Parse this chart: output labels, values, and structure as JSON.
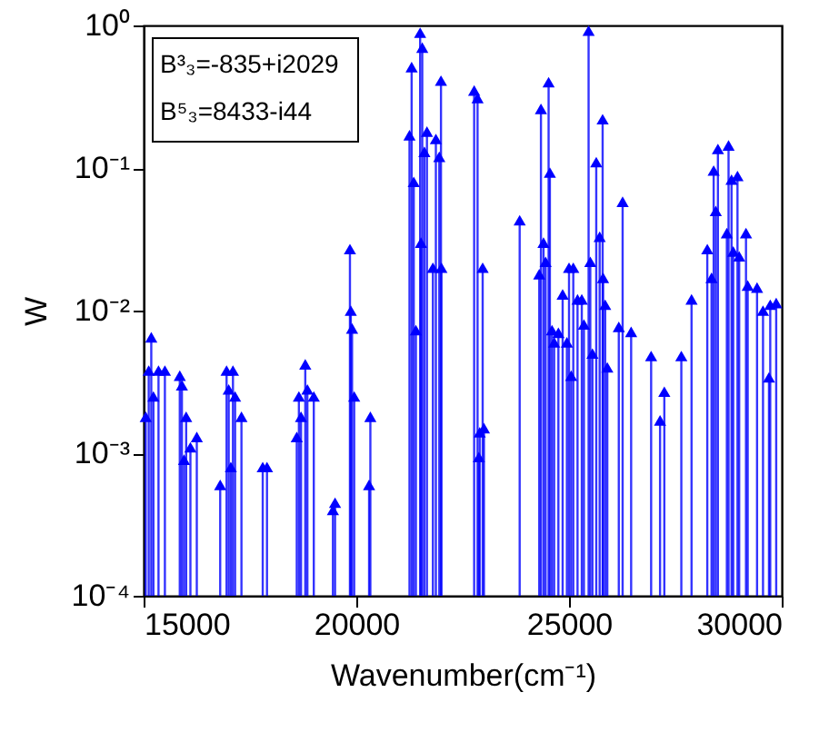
{
  "chart_data": {
    "type": "lollipop",
    "xlabel": "Wavenumber(cm⁻¹)",
    "ylabel": "W",
    "log": "y",
    "marker": "triangle",
    "xlim": [
      15000,
      30000
    ],
    "xticks": [
      {
        "value": 15000,
        "label": "15000"
      },
      {
        "value": 20000,
        "label": "20000"
      },
      {
        "value": 25000,
        "label": "25000"
      },
      {
        "value": 30000,
        "label": "30000"
      }
    ],
    "ylim": [
      0.0001,
      1
    ],
    "yticks": [
      {
        "value": 0.0001,
        "label": "10⁻⁴"
      },
      {
        "value": 0.001,
        "label": "10⁻³"
      },
      {
        "value": 0.01,
        "label": "10⁻²"
      },
      {
        "value": 0.1,
        "label": "10⁻¹"
      },
      {
        "value": 1,
        "label": "10⁰"
      }
    ],
    "annotations": [
      "B³₃=-835+i2029",
      "B⁵₃=8433-i44"
    ],
    "series": [
      {
        "color": "#0000ff",
        "x": [
          15050,
          15120,
          15180,
          15230,
          15350,
          15500,
          15850,
          15900,
          15950,
          16000,
          16100,
          16250,
          16800,
          16950,
          17000,
          17050,
          17100,
          17150,
          17300,
          17800,
          17900,
          18600,
          18650,
          18700,
          18800,
          18850,
          19000,
          19450,
          19500,
          19850,
          19870,
          19900,
          19950,
          20300,
          20330,
          21250,
          21300,
          21350,
          21400,
          21500,
          21520,
          21550,
          21600,
          21660,
          21800,
          21870,
          21950,
          21990,
          22000,
          22770,
          22850,
          22880,
          22900,
          22970,
          23000,
          23840,
          24300,
          24340,
          24400,
          24450,
          24520,
          24550,
          24600,
          24650,
          24750,
          24850,
          24950,
          25000,
          25050,
          25100,
          25200,
          25300,
          25350,
          25460,
          25500,
          25550,
          25640,
          25720,
          25790,
          25800,
          25850,
          25900,
          26170,
          26260,
          26460,
          26930,
          27140,
          27240,
          27640,
          27880,
          28250,
          28350,
          28400,
          28450,
          28500,
          28710,
          28750,
          28820,
          28860,
          28960,
          29000,
          29160,
          29200,
          29420,
          29560,
          29700,
          29730,
          29870
        ],
        "values": [
          0.0018,
          0.0038,
          0.0065,
          0.0025,
          0.0038,
          0.0038,
          0.0035,
          0.003,
          0.0009,
          0.0018,
          0.0011,
          0.0013,
          0.0006,
          0.0038,
          0.0028,
          0.0008,
          0.0038,
          0.0025,
          0.0018,
          0.0008,
          0.0008,
          0.0013,
          0.0025,
          0.0018,
          0.0042,
          0.0028,
          0.0025,
          0.0004,
          0.00045,
          0.027,
          0.01,
          0.0075,
          0.0025,
          0.0006,
          0.0018,
          0.17,
          0.51,
          0.08,
          0.0073,
          0.89,
          0.03,
          0.7,
          0.13,
          0.18,
          0.02,
          0.16,
          0.12,
          0.41,
          0.02,
          0.35,
          0.31,
          0.00094,
          0.0014,
          0.02,
          0.0015,
          0.043,
          0.018,
          0.26,
          0.03,
          0.022,
          0.4,
          0.093,
          0.0073,
          0.006,
          0.007,
          0.013,
          0.006,
          0.02,
          0.0035,
          0.02,
          0.012,
          0.012,
          0.008,
          0.92,
          0.022,
          0.005,
          0.11,
          0.033,
          0.22,
          0.017,
          0.011,
          0.004,
          0.0077,
          0.058,
          0.0071,
          0.0048,
          0.0017,
          0.0027,
          0.0048,
          0.012,
          0.027,
          0.017,
          0.096,
          0.05,
          0.136,
          0.035,
          0.144,
          0.083,
          0.026,
          0.088,
          0.024,
          0.035,
          0.015,
          0.0145,
          0.01,
          0.0034,
          0.011,
          0.0113
        ]
      }
    ]
  }
}
